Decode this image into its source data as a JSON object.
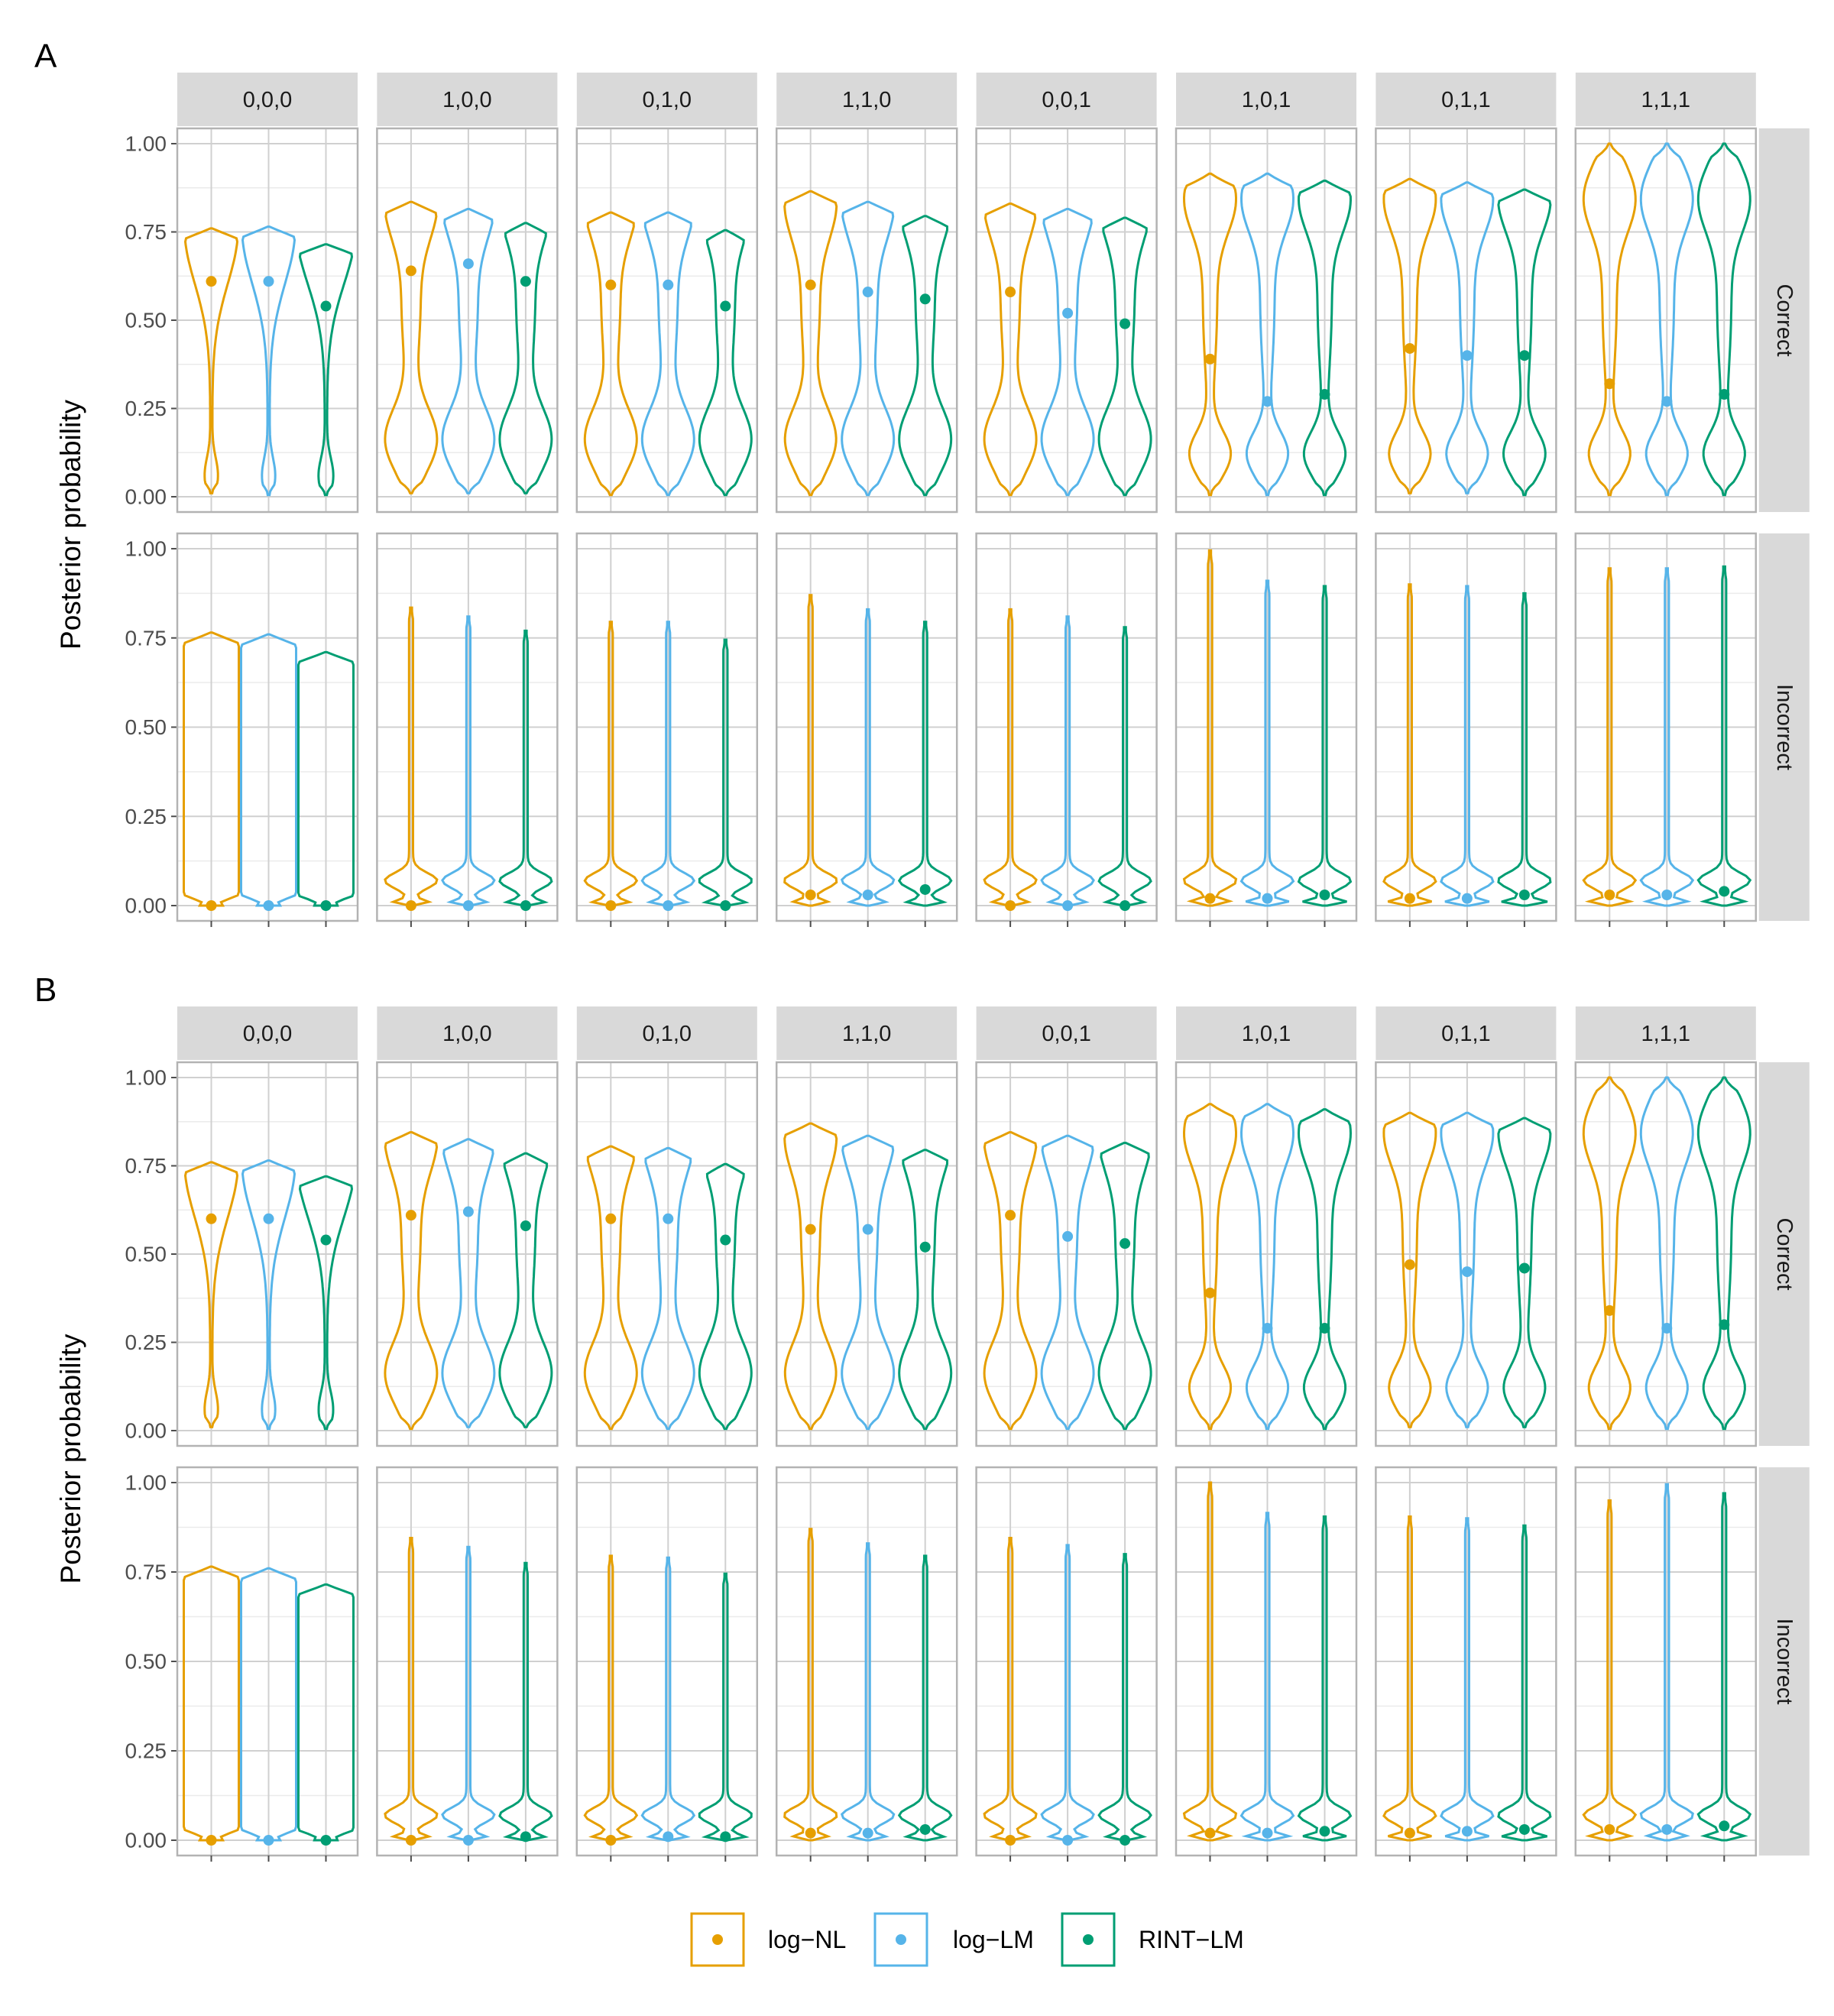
{
  "chart_data": {
    "type": "violin",
    "ylabel": "Posterior probability",
    "y_ticks": [
      "0.00",
      "0.25",
      "0.50",
      "0.75",
      "1.00"
    ],
    "ylim": [
      0,
      1
    ],
    "column_strips": [
      "0,0,0",
      "1,0,0",
      "0,1,0",
      "1,1,0",
      "0,0,1",
      "1,0,1",
      "0,1,1",
      "1,1,1"
    ],
    "row_strips": [
      "Correct",
      "Incorrect"
    ],
    "legend": {
      "position": "bottom",
      "entries": [
        {
          "label": "log−NL",
          "color": "#E69F00"
        },
        {
          "label": "log−LM",
          "color": "#56B4E9"
        },
        {
          "label": "RINT−LM",
          "color": "#009E73"
        }
      ]
    },
    "panels": [
      {
        "letter": "A",
        "correct": {
          "max": [
            [
              0.76,
              0.765,
              0.715
            ],
            [
              0.835,
              0.815,
              0.775
            ],
            [
              0.805,
              0.805,
              0.755
            ],
            [
              0.865,
              0.835,
              0.795
            ],
            [
              0.83,
              0.815,
              0.79
            ],
            [
              0.915,
              0.915,
              0.895
            ],
            [
              0.9,
              0.89,
              0.87
            ],
            [
              1.0,
              1.0,
              1.0
            ]
          ],
          "min": [
            [
              0.01,
              0.005,
              0.005
            ],
            [
              0.01,
              0.01,
              0.01
            ],
            [
              0.005,
              0.005,
              0.005
            ],
            [
              0.005,
              0.005,
              0.005
            ],
            [
              0.005,
              0.005,
              0.005
            ],
            [
              0.005,
              0.005,
              0.005
            ],
            [
              0.01,
              0.01,
              0.005
            ],
            [
              0.005,
              0.005,
              0.005
            ]
          ],
          "means": [
            [
              0.61,
              0.61,
              0.54
            ],
            [
              0.64,
              0.66,
              0.61
            ],
            [
              0.6,
              0.6,
              0.54
            ],
            [
              0.6,
              0.58,
              0.56
            ],
            [
              0.58,
              0.52,
              0.49
            ],
            [
              0.39,
              0.27,
              0.29
            ],
            [
              0.42,
              0.4,
              0.4
            ],
            [
              0.32,
              0.27,
              0.29
            ]
          ]
        },
        "incorrect": {
          "max": [
            [
              0.765,
              0.76,
              0.71
            ],
            [
              0.835,
              0.81,
              0.77
            ],
            [
              0.795,
              0.795,
              0.745
            ],
            [
              0.87,
              0.83,
              0.795
            ],
            [
              0.83,
              0.81,
              0.78
            ],
            [
              0.995,
              0.91,
              0.895
            ],
            [
              0.9,
              0.895,
              0.875
            ],
            [
              0.945,
              0.945,
              0.95
            ]
          ],
          "means": [
            [
              0.0,
              0.0,
              0.0
            ],
            [
              0.0,
              0.0,
              0.0
            ],
            [
              0.0,
              0.0,
              0.0
            ],
            [
              0.03,
              0.03,
              0.045
            ],
            [
              0.0,
              0.0,
              0.0
            ],
            [
              0.02,
              0.02,
              0.03
            ],
            [
              0.02,
              0.02,
              0.03
            ],
            [
              0.03,
              0.03,
              0.04
            ]
          ]
        }
      },
      {
        "letter": "B",
        "correct": {
          "max": [
            [
              0.76,
              0.765,
              0.72
            ],
            [
              0.845,
              0.825,
              0.785
            ],
            [
              0.805,
              0.8,
              0.755
            ],
            [
              0.87,
              0.835,
              0.795
            ],
            [
              0.845,
              0.835,
              0.815
            ],
            [
              0.925,
              0.925,
              0.91
            ],
            [
              0.9,
              0.9,
              0.885
            ],
            [
              1.0,
              1.0,
              1.0
            ]
          ],
          "min": [
            [
              0.01,
              0.005,
              0.005
            ],
            [
              0.005,
              0.01,
              0.01
            ],
            [
              0.005,
              0.005,
              0.005
            ],
            [
              0.005,
              0.005,
              0.005
            ],
            [
              0.005,
              0.005,
              0.005
            ],
            [
              0.005,
              0.005,
              0.005
            ],
            [
              0.01,
              0.01,
              0.01
            ],
            [
              0.005,
              0.005,
              0.005
            ]
          ],
          "means": [
            [
              0.6,
              0.6,
              0.54
            ],
            [
              0.61,
              0.62,
              0.58
            ],
            [
              0.6,
              0.6,
              0.54
            ],
            [
              0.57,
              0.57,
              0.52
            ],
            [
              0.61,
              0.55,
              0.53
            ],
            [
              0.39,
              0.29,
              0.29
            ],
            [
              0.47,
              0.45,
              0.46
            ],
            [
              0.34,
              0.29,
              0.3
            ]
          ]
        },
        "incorrect": {
          "max": [
            [
              0.765,
              0.76,
              0.715
            ],
            [
              0.845,
              0.82,
              0.775
            ],
            [
              0.795,
              0.79,
              0.745
            ],
            [
              0.87,
              0.83,
              0.795
            ],
            [
              0.845,
              0.825,
              0.8
            ],
            [
              1.0,
              0.915,
              0.905
            ],
            [
              0.905,
              0.9,
              0.88
            ],
            [
              0.95,
              0.995,
              0.97
            ]
          ],
          "means": [
            [
              0.0,
              0.0,
              0.0
            ],
            [
              0.0,
              0.0,
              0.01
            ],
            [
              0.0,
              0.01,
              0.01
            ],
            [
              0.02,
              0.02,
              0.03
            ],
            [
              0.0,
              0.0,
              0.0
            ],
            [
              0.02,
              0.02,
              0.025
            ],
            [
              0.02,
              0.025,
              0.03
            ],
            [
              0.03,
              0.03,
              0.04
            ]
          ]
        }
      }
    ]
  }
}
